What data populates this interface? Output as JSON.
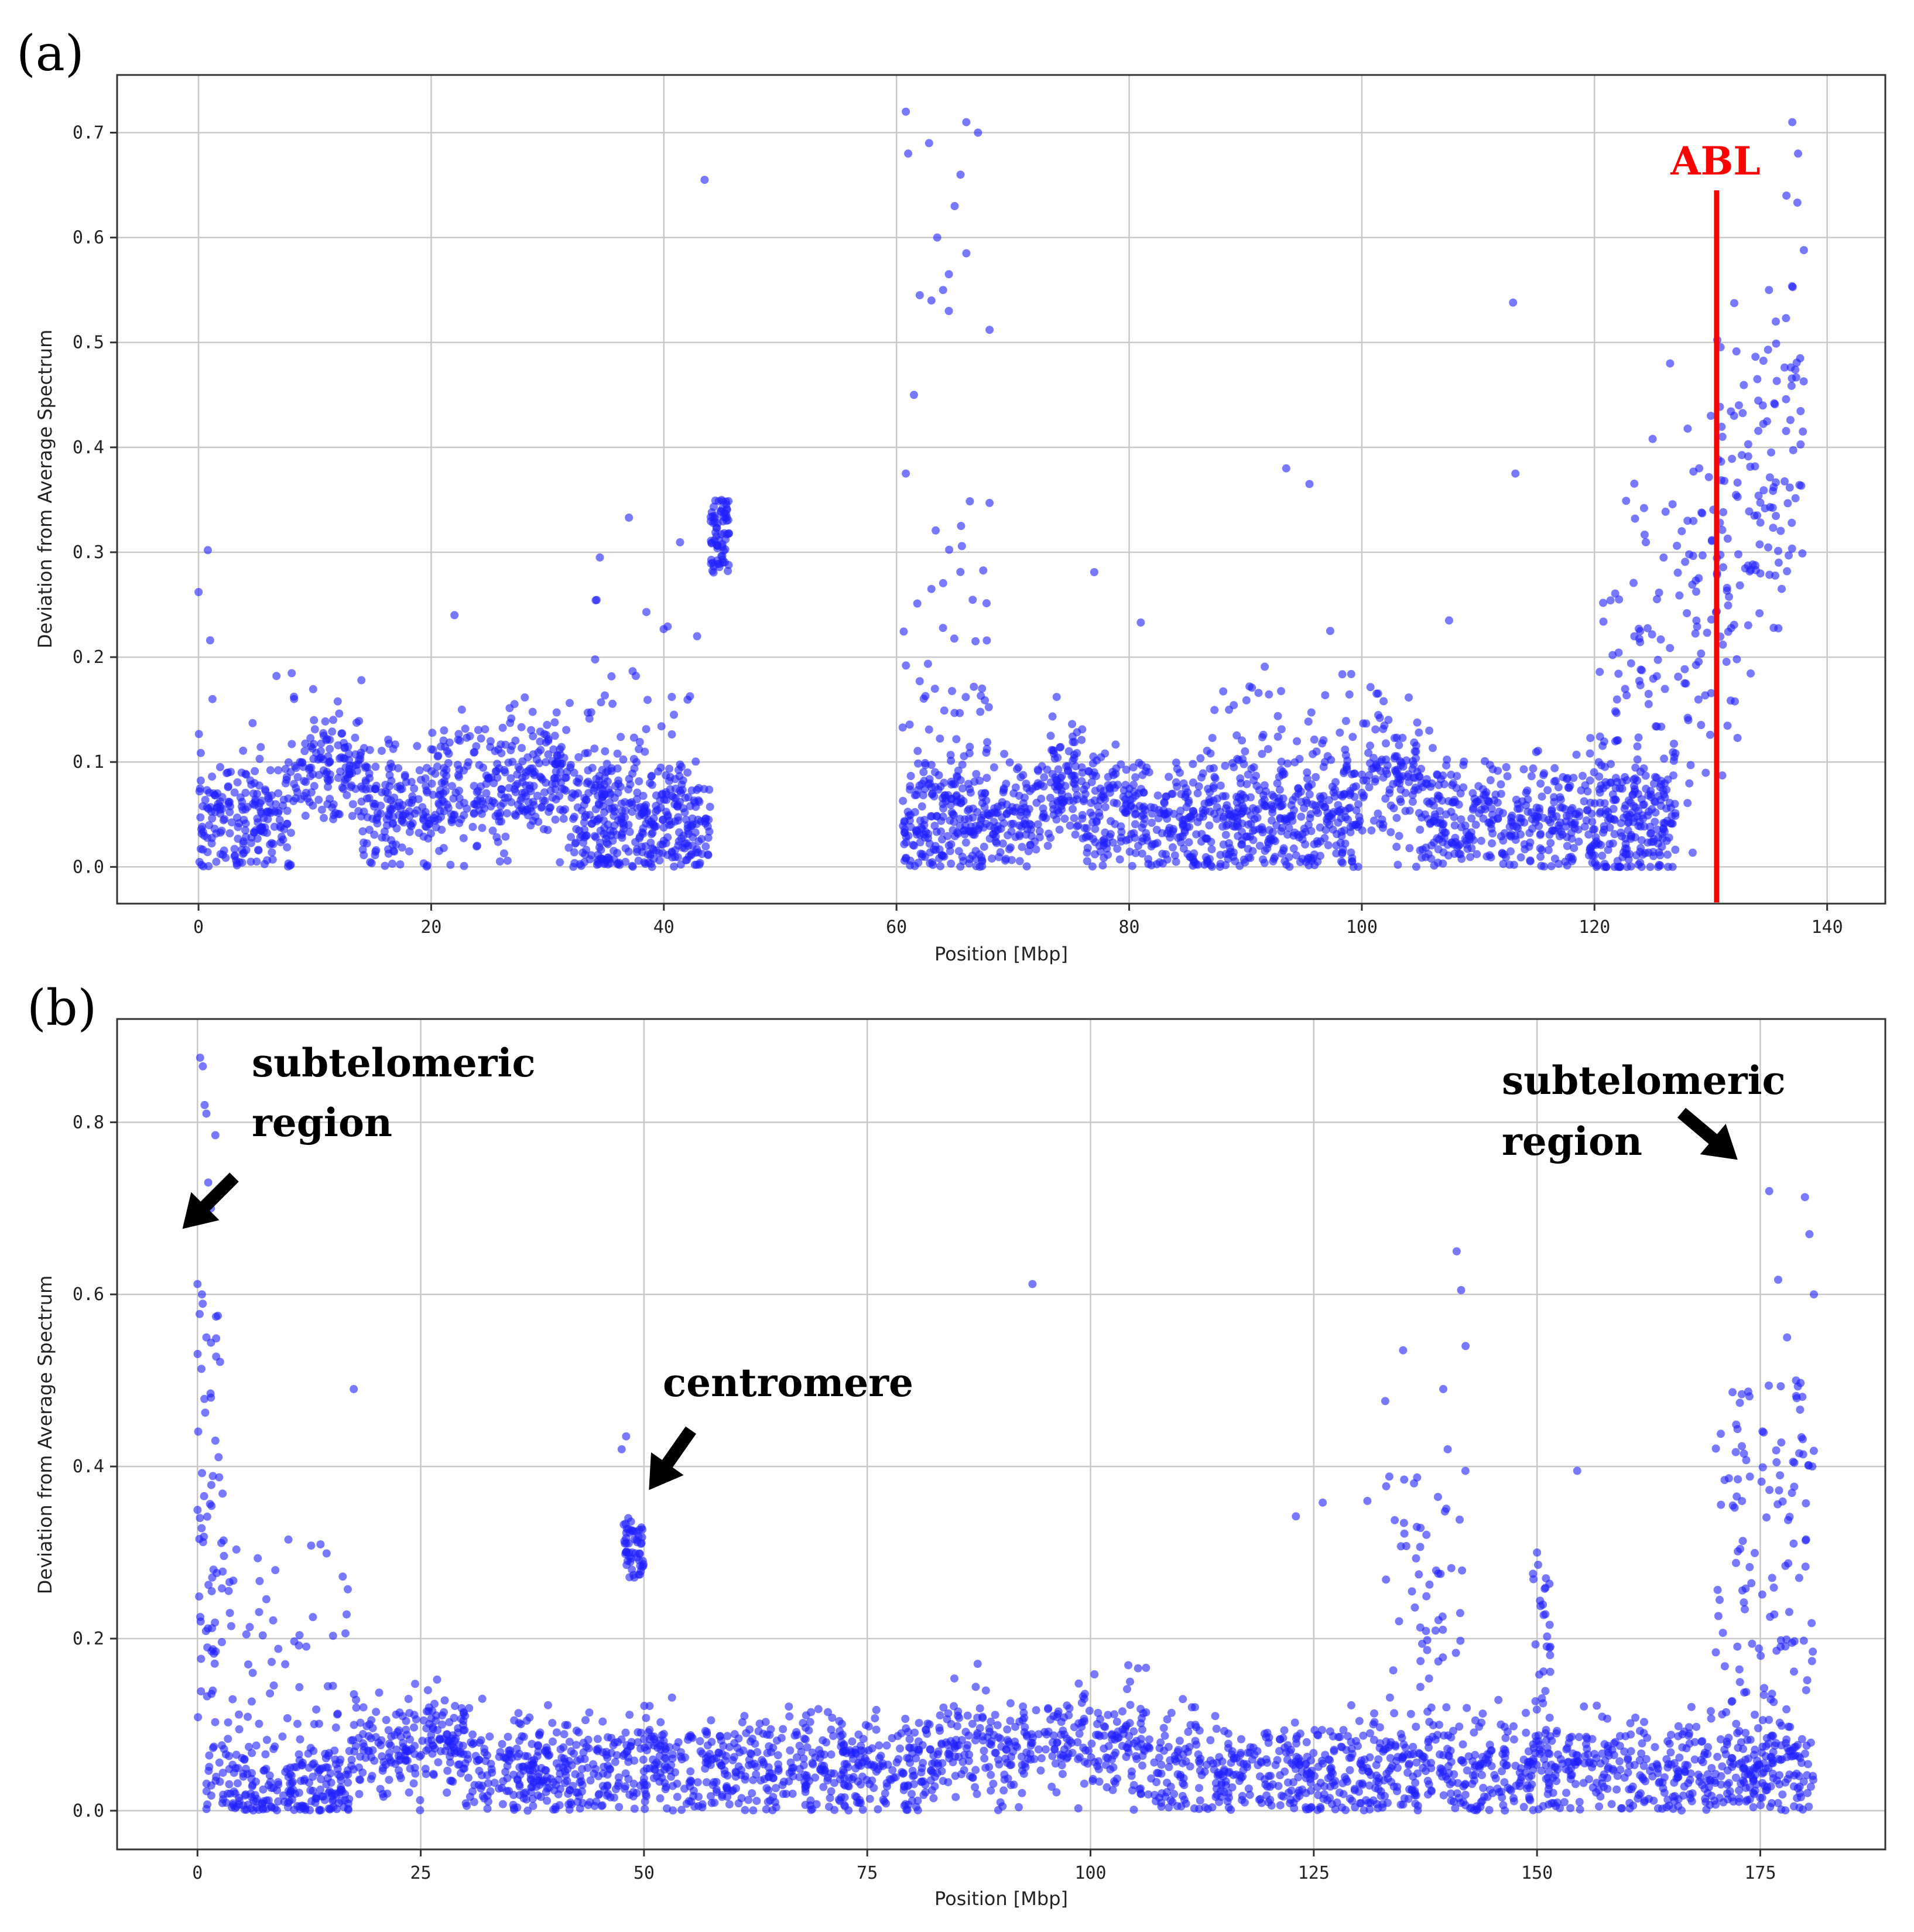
{
  "chart_data": [
    {
      "panel": "(a)",
      "type": "scatter",
      "title": "",
      "xlabel": "Position [Mbp]",
      "ylabel": "Deviation from Average Spectrum",
      "xlim": [
        -7,
        145
      ],
      "ylim": [
        -0.035,
        0.755
      ],
      "xticks": [
        0,
        20,
        40,
        60,
        80,
        100,
        120,
        140
      ],
      "xtick_labels": [
        "0",
        "20",
        "40",
        "60",
        "80",
        "100",
        "120",
        "140"
      ],
      "yticks": [
        0.0,
        0.1,
        0.2,
        0.3,
        0.4,
        0.5,
        0.6,
        0.7
      ],
      "ytick_labels": [
        "0.0",
        "0.1",
        "0.2",
        "0.3",
        "0.4",
        "0.5",
        "0.6",
        "0.7"
      ],
      "grid": true,
      "marker_color": "#1f1fff",
      "vline": {
        "x": 130.5,
        "ymin": -0.035,
        "ymax": 0.645,
        "color": "#ff0000",
        "label": "ABL"
      },
      "annotations": [],
      "series": [
        {
          "name": "outliers",
          "x": [
            0,
            0.8,
            1,
            1.2,
            22,
            14,
            6.7,
            34.5,
            37,
            38.5,
            43.5,
            60.8,
            61,
            61.5,
            62.8,
            63.5,
            64,
            64.5,
            65,
            65.5,
            66,
            67,
            68,
            62,
            63,
            64.5,
            66,
            68,
            63,
            60.8,
            77,
            81,
            93.5,
            95.5,
            113,
            113.2,
            107.5,
            126.5,
            125,
            128,
            130,
            137,
            137.5,
            138,
            136.5,
            135,
            134,
            132,
            131,
            129,
            127.5
          ],
          "y": [
            0.262,
            0.302,
            0.216,
            0.16,
            0.24,
            0.178,
            0.182,
            0.295,
            0.333,
            0.243,
            0.655,
            0.72,
            0.68,
            0.45,
            0.69,
            0.6,
            0.55,
            0.53,
            0.63,
            0.66,
            0.585,
            0.7,
            0.512,
            0.545,
            0.54,
            0.565,
            0.71,
            0.347,
            0.265,
            0.375,
            0.281,
            0.233,
            0.38,
            0.365,
            0.538,
            0.375,
            0.235,
            0.48,
            0.408,
            0.33,
            0.43,
            0.71,
            0.68,
            0.588,
            0.64,
            0.55,
            0.465,
            0.43,
            0.41,
            0.38,
            0.32
          ]
        },
        {
          "name": "baseline",
          "description": "dense band of points mostly between 0.0 and 0.12 from 0-44 Mbp and 60-127 Mbp; cluster ~0.28-0.37 at 44-45 Mbp; rising scatter 0.1-0.7 from 120-138 Mbp"
        }
      ]
    },
    {
      "panel": "(b)",
      "type": "scatter",
      "title": "",
      "xlabel": "Position [Mbp]",
      "ylabel": "Deviation from Average Spectrum",
      "xlim": [
        -9,
        189
      ],
      "ylim": [
        -0.045,
        0.92
      ],
      "xticks": [
        0,
        25,
        50,
        75,
        100,
        125,
        150,
        175
      ],
      "xtick_labels": [
        "0",
        "25",
        "50",
        "75",
        "100",
        "125",
        "150",
        "175"
      ],
      "yticks": [
        0.0,
        0.2,
        0.4,
        0.6,
        0.8
      ],
      "ytick_labels": [
        "0.0",
        "0.2",
        "0.4",
        "0.6",
        "0.8"
      ],
      "grid": true,
      "marker_color": "#1f1fff",
      "annotations": [
        {
          "text_lines": [
            "subtelomeric",
            "region"
          ],
          "points_to_x": 4,
          "points_to_y": 0.66
        },
        {
          "text_lines": [
            "centromere"
          ],
          "points_to_x": 50,
          "points_to_y": 0.36
        },
        {
          "text_lines": [
            "subtelomeric",
            "region"
          ],
          "points_to_x": 176,
          "points_to_y": 0.73
        }
      ],
      "series": [
        {
          "name": "outliers",
          "x": [
            0.3,
            0.6,
            0.8,
            1,
            1.2,
            1.5,
            2,
            2.5,
            0,
            0.5,
            1,
            1.5,
            2,
            17.5,
            48,
            47.5,
            93.5,
            141,
            141.5,
            142,
            140,
            139.5,
            135,
            133,
            131,
            123,
            126,
            176,
            177,
            180,
            180.5,
            178,
            179,
            181,
            154.5,
            150,
            151
          ],
          "y": [
            0.875,
            0.865,
            0.82,
            0.81,
            0.73,
            0.7,
            0.785,
            0.72,
            0.612,
            0.6,
            0.55,
            0.48,
            0.43,
            0.49,
            0.435,
            0.42,
            0.612,
            0.65,
            0.605,
            0.54,
            0.42,
            0.49,
            0.535,
            0.476,
            0.36,
            0.342,
            0.358,
            0.72,
            0.617,
            0.713,
            0.67,
            0.55,
            0.5,
            0.6,
            0.395,
            0.3,
            0.27
          ]
        },
        {
          "name": "baseline",
          "description": "dense band 0.0-0.12 across 0-180 Mbp; cluster ~0.28-0.34 near 48-50 Mbp; peaks near 0-3, 133-142, 150, 170-182 Mbp"
        }
      ]
    }
  ],
  "panels": {
    "a": {
      "label": "(a)",
      "xlabel": "Position [Mbp]",
      "ylabel": "Deviation from Average Spectrum",
      "abl_label": "ABL"
    },
    "b": {
      "label": "(b)",
      "xlabel": "Position [Mbp]",
      "ylabel": "Deviation from Average Spectrum",
      "annot_left_1": "subtelomeric",
      "annot_left_2": "region",
      "annot_mid": "centromere",
      "annot_right_1": "subtelomeric",
      "annot_right_2": "region"
    }
  }
}
